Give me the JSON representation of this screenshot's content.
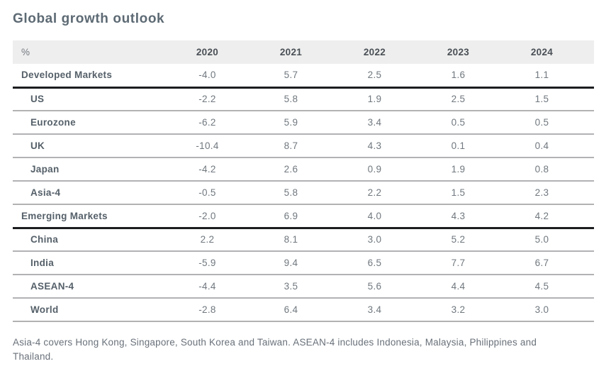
{
  "title": "Global growth outlook",
  "footnote": "Asia-4 covers Hong Kong, Singapore, South Korea and Taiwan. ASEAN-4 includes Indonesia, Malaysia, Philippines and Thailand.",
  "colors": {
    "title_text": "#5d6a74",
    "header_background": "#eeeeee",
    "year_header_text": "#4a5056",
    "row_label_text": "#556069",
    "value_text": "#70787f",
    "thin_divider": "#b2b2b5",
    "thick_divider": "#1b1d1f",
    "footnote_text": "#69717a"
  },
  "chart_data": {
    "type": "table",
    "title": "Global growth outlook",
    "unit_label": "%",
    "categories": [
      "2020",
      "2021",
      "2022",
      "2023",
      "2024"
    ],
    "series": [
      {
        "name": "Developed Markets",
        "indent": false,
        "thick_rule_after": true,
        "values": [
          -4.0,
          5.7,
          2.5,
          1.6,
          1.1
        ]
      },
      {
        "name": "US",
        "indent": true,
        "thick_rule_after": false,
        "values": [
          -2.2,
          5.8,
          1.9,
          2.5,
          1.5
        ]
      },
      {
        "name": "Eurozone",
        "indent": true,
        "thick_rule_after": false,
        "values": [
          -6.2,
          5.9,
          3.4,
          0.5,
          0.5
        ]
      },
      {
        "name": "UK",
        "indent": true,
        "thick_rule_after": false,
        "values": [
          -10.4,
          8.7,
          4.3,
          0.1,
          0.4
        ]
      },
      {
        "name": "Japan",
        "indent": true,
        "thick_rule_after": false,
        "values": [
          -4.2,
          2.6,
          0.9,
          1.9,
          0.8
        ]
      },
      {
        "name": "Asia-4",
        "indent": true,
        "thick_rule_after": false,
        "values": [
          -0.5,
          5.8,
          2.2,
          1.5,
          2.3
        ]
      },
      {
        "name": "Emerging Markets",
        "indent": false,
        "thick_rule_after": true,
        "values": [
          -2.0,
          6.9,
          4.0,
          4.3,
          4.2
        ]
      },
      {
        "name": "China",
        "indent": true,
        "thick_rule_after": false,
        "values": [
          2.2,
          8.1,
          3.0,
          5.2,
          5.0
        ]
      },
      {
        "name": "India",
        "indent": true,
        "thick_rule_after": false,
        "values": [
          -5.9,
          9.4,
          6.5,
          7.7,
          6.7
        ]
      },
      {
        "name": "ASEAN-4",
        "indent": true,
        "thick_rule_after": false,
        "values": [
          -4.4,
          3.5,
          5.6,
          4.4,
          4.5
        ]
      },
      {
        "name": "World",
        "indent": true,
        "thick_rule_after": false,
        "values": [
          -2.8,
          6.4,
          3.4,
          3.2,
          3.0
        ]
      }
    ],
    "value_format": "0.1f",
    "grid": "horizontal-rules",
    "legend_position": "none"
  }
}
